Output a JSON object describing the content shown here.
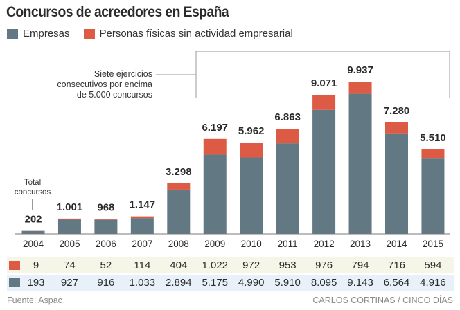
{
  "title": "Concursos de acreedores en España",
  "legend": [
    {
      "key": "empresas",
      "label": "Empresas",
      "color": "#627882"
    },
    {
      "key": "personas",
      "label": "Personas físicas sin actividad empresarial",
      "color": "#dd5a45"
    }
  ],
  "annotation": {
    "lines": [
      "Siete ejercicios",
      "consecutivos por encima",
      "de 5.000 concursos"
    ],
    "from_year": "2009",
    "to_year": "2015"
  },
  "total_label": [
    "Total",
    "concursos"
  ],
  "colors": {
    "empresas": "#627882",
    "personas": "#dd5a45",
    "axis": "#7a7a7a",
    "bracket": "#aaaaaa",
    "row_personas_bg": "#f6f6e8",
    "row_empresas_bg": "#e8f1f9"
  },
  "chart_data": {
    "type": "bar",
    "stacked": true,
    "title": "Concursos de acreedores en España",
    "xlabel": "",
    "ylabel": "",
    "ylim": [
      0,
      10000
    ],
    "grid": false,
    "legend_position": "top-left",
    "categories": [
      "2004",
      "2005",
      "2006",
      "2007",
      "2008",
      "2009",
      "2010",
      "2011",
      "2012",
      "2013",
      "2014",
      "2015"
    ],
    "series": [
      {
        "name": "Empresas",
        "values": [
          193,
          927,
          916,
          1033,
          2894,
          5175,
          4990,
          5910,
          8095,
          9143,
          6564,
          4916
        ]
      },
      {
        "name": "Personas físicas sin actividad empresarial",
        "values": [
          9,
          74,
          52,
          114,
          404,
          1022,
          972,
          953,
          976,
          794,
          716,
          594
        ]
      }
    ],
    "totals": [
      202,
      1001,
      968,
      1147,
      3298,
      6197,
      5962,
      6863,
      9071,
      9937,
      7280,
      5510
    ],
    "total_labels": [
      "202",
      "1.001",
      "968",
      "1.147",
      "3.298",
      "6.197",
      "5.962",
      "6.863",
      "9.071",
      "9.937",
      "7.280",
      "5.510"
    ],
    "table": {
      "personas": [
        "9",
        "74",
        "52",
        "114",
        "404",
        "1.022",
        "972",
        "953",
        "976",
        "794",
        "716",
        "594"
      ],
      "empresas": [
        "193",
        "927",
        "916",
        "1.033",
        "2.894",
        "5.175",
        "4.990",
        "5.910",
        "8.095",
        "9.143",
        "6.564",
        "4.916"
      ]
    }
  },
  "footer": {
    "source": "Fuente: Aspac",
    "credit": "CARLOS CORTINAS / CINCO DÍAS"
  }
}
